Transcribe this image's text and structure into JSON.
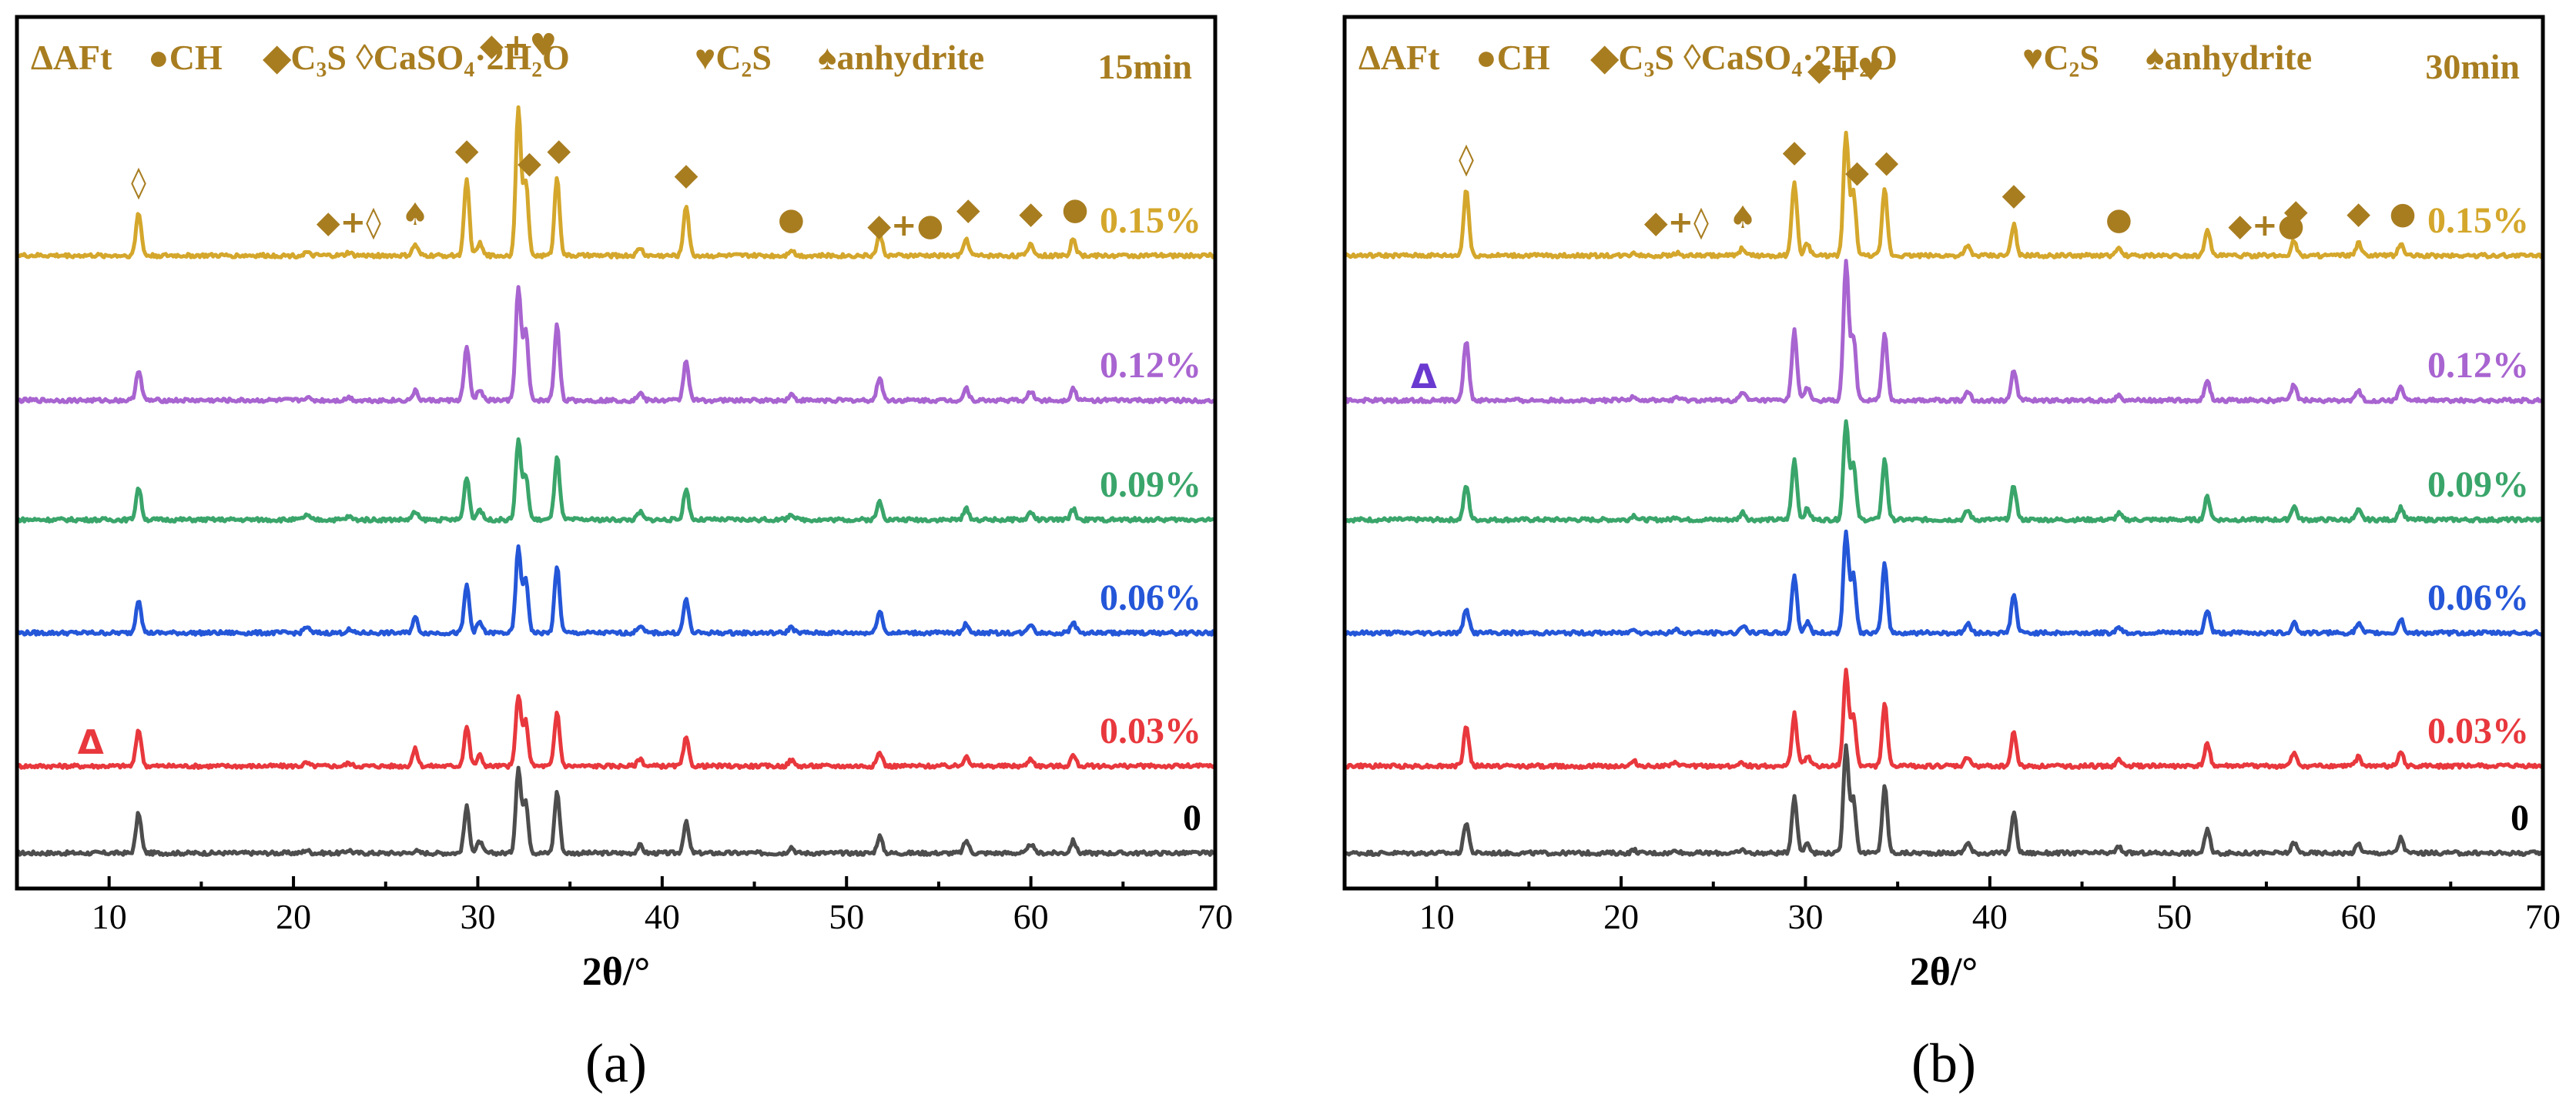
{
  "legend": {
    "aft": "ΔAFt",
    "ch": "●CH",
    "c3s": "◆C₃S",
    "gypsum": "◊CaSO₄·2H₂O",
    "c2s": "♥C₂S",
    "anhydrite": "♠anhydrite"
  },
  "marker_color": "#a87d20",
  "chart_data": [
    {
      "type": "line",
      "panel": "(a)",
      "time": "15min",
      "xlabel": "2θ/°",
      "ylabel": "",
      "xlim": [
        5,
        70
      ],
      "xticks": [
        10,
        20,
        30,
        40,
        50,
        60,
        70
      ],
      "yaxis_ticks": false,
      "peaks": [
        11.6,
        20.7,
        23.0,
        26.6,
        29.4,
        30.1,
        32.2,
        32.6,
        34.3,
        38.8,
        41.3,
        47.0,
        51.8,
        56.5,
        60.0,
        62.3
      ],
      "series": [
        {
          "name": "0",
          "color": "#4d4d4d",
          "baseline_level": 0,
          "peak_heights": [
            52,
            4,
            4,
            3,
            60,
            15,
            110,
            68,
            80,
            10,
            40,
            8,
            22,
            16,
            12,
            16
          ]
        },
        {
          "name": "0.03%",
          "color": "#e8383d",
          "baseline_level": 1,
          "peak_heights": [
            48,
            4,
            4,
            22,
            52,
            14,
            92,
            58,
            70,
            10,
            36,
            8,
            18,
            14,
            10,
            14
          ]
        },
        {
          "name": "0.06%",
          "color": "#2456d8",
          "baseline_level": 2,
          "peak_heights": [
            44,
            8,
            4,
            20,
            62,
            14,
            110,
            70,
            86,
            10,
            44,
            8,
            30,
            12,
            12,
            14
          ]
        },
        {
          "name": "0.09%",
          "color": "#3aa56a",
          "baseline_level": 3,
          "peak_heights": [
            42,
            6,
            4,
            10,
            56,
            14,
            104,
            58,
            82,
            10,
            40,
            8,
            24,
            14,
            10,
            14
          ]
        },
        {
          "name": "0.12%",
          "color": "#a864d0",
          "baseline_level": 4,
          "peak_heights": [
            40,
            4,
            4,
            12,
            70,
            14,
            148,
            90,
            100,
            10,
            52,
            8,
            30,
            16,
            12,
            16
          ]
        },
        {
          "name": "0.15%",
          "color": "#d4a72c",
          "baseline_level": 5,
          "peak_heights": [
            56,
            4,
            4,
            14,
            98,
            16,
            190,
            96,
            102,
            10,
            66,
            8,
            28,
            22,
            16,
            22
          ]
        }
      ],
      "annotations": [
        {
          "text": "◊",
          "x": 11.6
        },
        {
          "text": "◆+◊",
          "x": 23.0
        },
        {
          "text": "♠",
          "x": 26.6
        },
        {
          "text": "◆",
          "x": 29.4
        },
        {
          "text": "◆+♥",
          "x": 32.2
        },
        {
          "text": "◆",
          "x": 32.8
        },
        {
          "text": "◆",
          "x": 34.4
        },
        {
          "text": "◆",
          "x": 41.3
        },
        {
          "text": "●",
          "x": 47.0
        },
        {
          "text": "◆+●",
          "x": 53.2
        },
        {
          "text": "◆",
          "x": 56.6
        },
        {
          "text": "◆",
          "x": 60.0
        },
        {
          "text": "●",
          "x": 62.4
        }
      ],
      "aft_marker": {
        "text": "Δ",
        "x": 9.0,
        "series": "0.03%",
        "color": "#e8383d"
      }
    },
    {
      "type": "line",
      "panel": "(b)",
      "time": "30min",
      "xlabel": "2θ/°",
      "ylabel": "",
      "xlim": [
        5,
        70
      ],
      "xticks": [
        10,
        20,
        30,
        40,
        50,
        60,
        70
      ],
      "yaxis_ticks": false,
      "peaks": [
        11.6,
        20.7,
        23.0,
        26.6,
        29.4,
        30.1,
        32.2,
        32.6,
        34.3,
        38.8,
        41.3,
        47.0,
        51.8,
        56.5,
        60.0,
        62.3
      ],
      "series": [
        {
          "name": "0",
          "color": "#4d4d4d",
          "baseline_level": 0,
          "peak_heights": [
            40,
            4,
            4,
            4,
            74,
            14,
            140,
            70,
            86,
            14,
            52,
            8,
            30,
            14,
            12,
            20
          ]
        },
        {
          "name": "0.03%",
          "color": "#e8383d",
          "baseline_level": 1,
          "peak_heights": [
            52,
            6,
            4,
            4,
            68,
            14,
            122,
            66,
            80,
            12,
            44,
            8,
            30,
            16,
            12,
            18
          ]
        },
        {
          "name": "0.06%",
          "color": "#2456d8",
          "baseline_level": 2,
          "peak_heights": [
            32,
            6,
            4,
            10,
            76,
            14,
            130,
            74,
            90,
            12,
            50,
            8,
            30,
            14,
            12,
            18
          ]
        },
        {
          "name": "0.09%",
          "color": "#3aa56a",
          "baseline_level": 3,
          "peak_heights": [
            44,
            6,
            4,
            10,
            78,
            14,
            128,
            72,
            78,
            12,
            44,
            8,
            30,
            18,
            12,
            16
          ]
        },
        {
          "name": "0.12%",
          "color": "#a864d0",
          "baseline_level": 4,
          "peak_heights": [
            78,
            6,
            4,
            10,
            90,
            16,
            178,
            82,
            86,
            12,
            40,
            8,
            26,
            20,
            12,
            18
          ]
        },
        {
          "name": "0.15%",
          "color": "#d4a72c",
          "baseline_level": 5,
          "peak_heights": [
            86,
            4,
            4,
            10,
            96,
            16,
            158,
            82,
            86,
            12,
            40,
            8,
            36,
            20,
            16,
            16
          ]
        }
      ],
      "annotations": [
        {
          "text": "◊",
          "x": 11.6
        },
        {
          "text": "◆+◊",
          "x": 23.0
        },
        {
          "text": "♠",
          "x": 26.6
        },
        {
          "text": "◆",
          "x": 29.4
        },
        {
          "text": "◆+♥",
          "x": 32.2
        },
        {
          "text": "◆",
          "x": 32.8
        },
        {
          "text": "◆",
          "x": 34.4
        },
        {
          "text": "◆",
          "x": 41.3
        },
        {
          "text": "●",
          "x": 47.0
        },
        {
          "text": "◆+●",
          "x": 55.0
        },
        {
          "text": "◆",
          "x": 56.6
        },
        {
          "text": "◆",
          "x": 60.0
        },
        {
          "text": "●",
          "x": 62.4
        }
      ],
      "aft_marker": {
        "text": "Δ",
        "x": 9.3,
        "series": "0.12%",
        "color": "#6a3ad0"
      }
    }
  ]
}
